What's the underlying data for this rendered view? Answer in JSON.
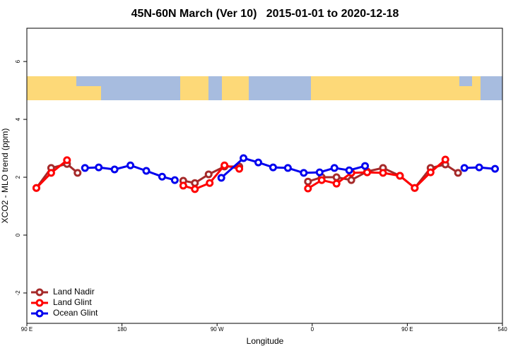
{
  "chart_data": {
    "type": "line",
    "title": "45N-60N March (Ver 10)   2015-01-01 to 2020-12-18",
    "x_label": "Longitude",
    "y_label": "XCO2 - MLO trend (ppm)",
    "xlim": [
      90,
      540
    ],
    "xticks": [
      {
        "value": 90,
        "label": "90 E"
      },
      180,
      {
        "value": 270,
        "label": "90 W"
      },
      {
        "value": 360,
        "label": "0"
      },
      {
        "value": 450,
        "label": "90 E"
      },
      540
    ],
    "ylim": [
      -3.05,
      7.15
    ],
    "yticks": [
      -2,
      0,
      2,
      4,
      6
    ],
    "legend": "bottom-left",
    "series": [
      {
        "name": "Land Nadir",
        "color": "#a52a2a",
        "x": [
          99,
          113,
          128,
          138,
          null,
          238,
          249,
          262,
          277,
          291,
          null,
          356,
          369,
          383,
          397,
          412,
          427,
          443,
          457,
          472,
          486,
          498
        ],
        "values": [
          1.63,
          2.32,
          2.46,
          2.15,
          null,
          1.88,
          1.8,
          2.1,
          2.37,
          2.37,
          null,
          1.85,
          2.0,
          2.0,
          1.9,
          2.2,
          2.32,
          2.05,
          1.63,
          2.32,
          2.44,
          2.15
        ]
      },
      {
        "name": "Land Glint",
        "color": "#ff0000",
        "x": [
          99,
          113,
          128,
          null,
          238,
          249,
          263,
          277,
          291,
          null,
          356,
          369,
          383,
          397,
          412,
          427,
          443,
          457,
          472,
          486
        ],
        "values": [
          1.63,
          2.15,
          2.59,
          null,
          1.71,
          1.59,
          1.8,
          2.41,
          2.29,
          null,
          1.61,
          1.9,
          1.78,
          2.15,
          2.17,
          2.15,
          2.05,
          1.63,
          2.17,
          2.61
        ]
      },
      {
        "name": "Ocean Glint",
        "color": "#0000ee",
        "x": [
          145,
          158,
          173,
          188,
          203,
          218,
          230,
          null,
          274,
          295,
          309,
          323,
          337,
          352,
          367,
          381,
          395,
          410,
          null,
          504,
          518,
          533
        ],
        "values": [
          2.32,
          2.34,
          2.27,
          2.41,
          2.22,
          2.02,
          1.9,
          null,
          1.98,
          2.66,
          2.51,
          2.34,
          2.32,
          2.15,
          2.17,
          2.32,
          2.24,
          2.39,
          null,
          2.32,
          2.34,
          2.29
        ]
      }
    ]
  }
}
